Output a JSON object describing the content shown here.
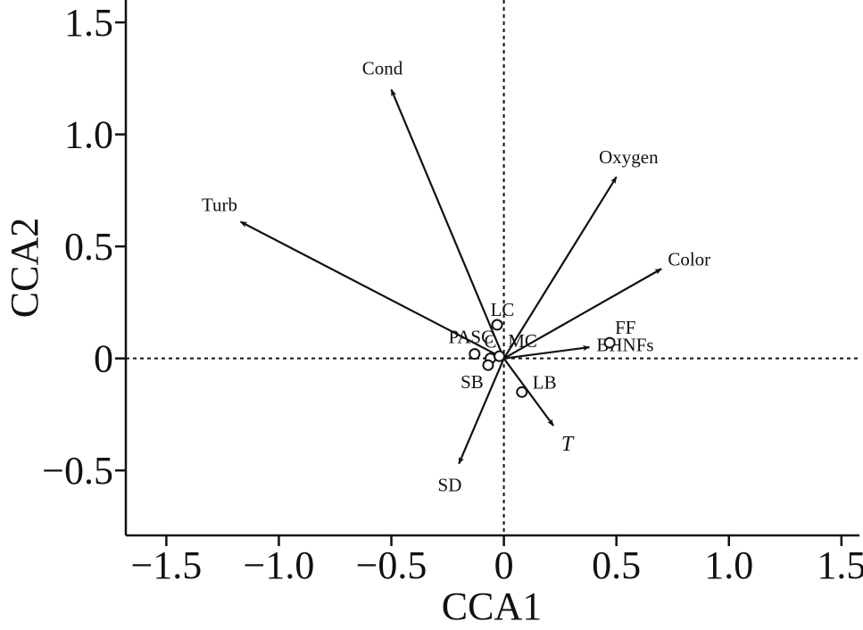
{
  "chart_data": {
    "type": "scatter",
    "subtype": "cca-biplot",
    "xlabel": "CCA1",
    "ylabel": "CCA2",
    "xlim": [
      -1.68,
      1.58
    ],
    "ylim": [
      -0.79,
      1.6
    ],
    "xticks": [
      -1.5,
      -1.0,
      -0.5,
      0,
      0.5,
      1.0,
      1.5
    ],
    "xtick_labels": [
      "−1.5",
      "−1.0",
      "−0.5",
      "0",
      "0.5",
      "1.0",
      "1.5"
    ],
    "yticks": [
      -0.5,
      0,
      0.5,
      1.0,
      1.5
    ],
    "ytick_labels": [
      "−0.5",
      "0",
      "0.5",
      "1.0",
      "1.5"
    ],
    "zero_lines": "dotted",
    "grid": false,
    "legend": "none",
    "color": "#111111",
    "vectors": [
      {
        "label": "Cond",
        "x": -0.5,
        "y": 1.2,
        "italic": false
      },
      {
        "label": "Oxygen",
        "x": 0.5,
        "y": 0.81,
        "italic": false
      },
      {
        "label": "Turb",
        "x": -1.17,
        "y": 0.61,
        "italic": false
      },
      {
        "label": "Color",
        "x": 0.7,
        "y": 0.4,
        "italic": false
      },
      {
        "label": "BHNFs",
        "x": 0.38,
        "y": 0.05,
        "italic": false
      },
      {
        "label": "T",
        "x": 0.22,
        "y": -0.3,
        "italic": true
      },
      {
        "label": "SD",
        "x": -0.2,
        "y": -0.47,
        "italic": false
      }
    ],
    "points": [
      {
        "label": "LC",
        "x": -0.03,
        "y": 0.15
      },
      {
        "label": "PASC",
        "x": -0.13,
        "y": 0.02
      },
      {
        "label": "C",
        "x": -0.06,
        "y": 0.0
      },
      {
        "label": "MC",
        "x": -0.02,
        "y": 0.01
      },
      {
        "label": "SB",
        "x": -0.07,
        "y": -0.03
      },
      {
        "label": "LB",
        "x": 0.08,
        "y": -0.15
      },
      {
        "label": "FF",
        "x": 0.47,
        "y": 0.07
      }
    ]
  }
}
